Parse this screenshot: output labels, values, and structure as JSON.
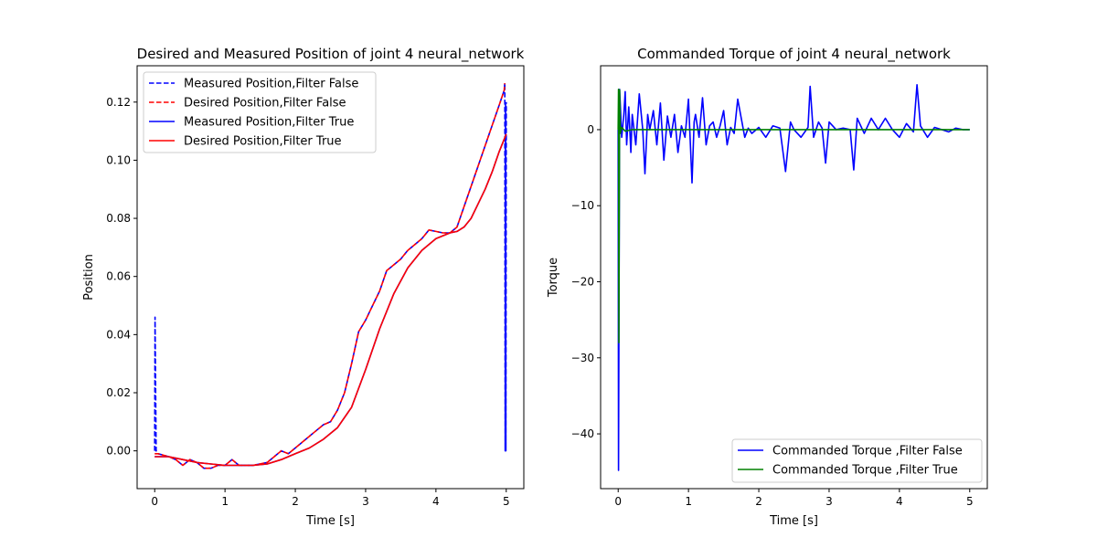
{
  "chart_data": [
    {
      "type": "line",
      "title": "Desired and Measured Position of joint 4 neural_network",
      "xlabel": "Time [s]",
      "ylabel": "Position",
      "xlim": [
        -0.25,
        5.25
      ],
      "ylim": [
        -0.013,
        0.1325
      ],
      "xticks": [
        0,
        1,
        2,
        3,
        4,
        5
      ],
      "xtick_labels": [
        "0",
        "1",
        "2",
        "3",
        "4",
        "5"
      ],
      "yticks": [
        0.0,
        0.02,
        0.04,
        0.06,
        0.08,
        0.1,
        0.12
      ],
      "ytick_labels": [
        "0.00",
        "0.02",
        "0.04",
        "0.06",
        "0.08",
        "0.10",
        "0.12"
      ],
      "grid": false,
      "legend_position": "upper-left",
      "series": [
        {
          "name": "Measured Position,Filter False",
          "color": "#0000ff",
          "style": "dashed",
          "x": [
            0,
            0.005,
            0.01,
            0.02,
            0.05,
            0.2,
            0.3,
            0.4,
            0.5,
            0.6,
            0.7,
            0.8,
            0.9,
            1.0,
            1.1,
            1.2,
            1.4,
            1.6,
            1.7,
            1.8,
            1.9,
            2.0,
            2.2,
            2.4,
            2.5,
            2.6,
            2.7,
            2.8,
            2.9,
            3.0,
            3.1,
            3.2,
            3.3,
            3.4,
            3.5,
            3.6,
            3.7,
            3.8,
            3.9,
            4.0,
            4.1,
            4.2,
            4.3,
            4.4,
            4.5,
            4.6,
            4.7,
            4.8,
            4.9,
            4.97,
            4.98,
            4.985,
            4.99,
            4.995,
            5.0
          ],
          "y": [
            0.0,
            0.046,
            0.03,
            0.0,
            -0.001,
            -0.002,
            -0.003,
            -0.005,
            -0.003,
            -0.004,
            -0.006,
            -0.006,
            -0.005,
            -0.005,
            -0.003,
            -0.005,
            -0.005,
            -0.004,
            -0.002,
            0.0,
            -0.001,
            0.001,
            0.005,
            0.009,
            0.01,
            0.014,
            0.02,
            0.03,
            0.041,
            0.045,
            0.05,
            0.055,
            0.062,
            0.064,
            0.066,
            0.069,
            0.071,
            0.073,
            0.076,
            0.0755,
            0.075,
            0.075,
            0.077,
            0.084,
            0.091,
            0.098,
            0.105,
            0.112,
            0.119,
            0.124,
            0.1265,
            0.0,
            0.12,
            0.0,
            0.12
          ]
        },
        {
          "name": "Desired Position,Filter False",
          "color": "#ff0000",
          "style": "dashed",
          "x": [
            0,
            0.05,
            0.2,
            0.3,
            0.4,
            0.5,
            0.6,
            0.7,
            0.8,
            0.9,
            1.0,
            1.1,
            1.2,
            1.4,
            1.6,
            1.7,
            1.8,
            1.9,
            2.0,
            2.2,
            2.4,
            2.5,
            2.6,
            2.7,
            2.8,
            2.9,
            3.0,
            3.1,
            3.2,
            3.3,
            3.4,
            3.5,
            3.6,
            3.7,
            3.8,
            3.9,
            4.0,
            4.1,
            4.2,
            4.3,
            4.4,
            4.5,
            4.6,
            4.7,
            4.8,
            4.9,
            4.97,
            4.98
          ],
          "y": [
            -0.001,
            -0.001,
            -0.002,
            -0.003,
            -0.005,
            -0.003,
            -0.004,
            -0.006,
            -0.006,
            -0.005,
            -0.005,
            -0.003,
            -0.005,
            -0.005,
            -0.004,
            -0.002,
            0.0,
            -0.001,
            0.001,
            0.005,
            0.009,
            0.01,
            0.014,
            0.02,
            0.03,
            0.041,
            0.045,
            0.05,
            0.055,
            0.062,
            0.064,
            0.066,
            0.069,
            0.071,
            0.073,
            0.076,
            0.0755,
            0.075,
            0.075,
            0.077,
            0.084,
            0.091,
            0.098,
            0.105,
            0.112,
            0.119,
            0.124,
            0.1265
          ]
        },
        {
          "name": "Measured Position,Filter True",
          "color": "#0000ff",
          "style": "solid",
          "x": [
            0,
            0.2,
            0.4,
            0.6,
            0.8,
            1.0,
            1.2,
            1.4,
            1.6,
            1.8,
            2.0,
            2.2,
            2.4,
            2.6,
            2.8,
            3.0,
            3.2,
            3.4,
            3.6,
            3.8,
            4.0,
            4.2,
            4.3,
            4.4,
            4.5,
            4.6,
            4.7,
            4.8,
            4.9,
            5.0
          ],
          "y": [
            -0.002,
            -0.002,
            -0.003,
            -0.004,
            -0.0045,
            -0.005,
            -0.005,
            -0.005,
            -0.0045,
            -0.003,
            -0.001,
            0.001,
            0.004,
            0.008,
            0.015,
            0.028,
            0.042,
            0.054,
            0.063,
            0.069,
            0.073,
            0.075,
            0.0755,
            0.077,
            0.08,
            0.085,
            0.09,
            0.096,
            0.103,
            0.109
          ]
        },
        {
          "name": "Desired Position,Filter True",
          "color": "#ff0000",
          "style": "solid",
          "x": [
            0,
            0.2,
            0.4,
            0.6,
            0.8,
            1.0,
            1.2,
            1.4,
            1.6,
            1.8,
            2.0,
            2.2,
            2.4,
            2.6,
            2.8,
            3.0,
            3.2,
            3.4,
            3.6,
            3.8,
            4.0,
            4.2,
            4.3,
            4.4,
            4.5,
            4.6,
            4.7,
            4.8,
            4.9,
            5.0
          ],
          "y": [
            -0.002,
            -0.002,
            -0.003,
            -0.004,
            -0.0045,
            -0.005,
            -0.005,
            -0.005,
            -0.0045,
            -0.003,
            -0.001,
            0.001,
            0.004,
            0.008,
            0.015,
            0.028,
            0.042,
            0.054,
            0.063,
            0.069,
            0.073,
            0.075,
            0.0755,
            0.077,
            0.08,
            0.085,
            0.09,
            0.096,
            0.103,
            0.109
          ]
        }
      ]
    },
    {
      "type": "line",
      "title": "Commanded Torque of joint 4 neural_network",
      "xlabel": "Time [s]",
      "ylabel": "Torque",
      "xlim": [
        -0.25,
        5.25
      ],
      "ylim": [
        -47.2,
        8.4
      ],
      "xticks": [
        0,
        1,
        2,
        3,
        4,
        5
      ],
      "xtick_labels": [
        "0",
        "1",
        "2",
        "3",
        "4",
        "5"
      ],
      "yticks": [
        -40,
        -30,
        -20,
        -10,
        0
      ],
      "ytick_labels": [
        "−40",
        "−30",
        "−20",
        "−10",
        "0"
      ],
      "grid": false,
      "legend_position": "lower-right",
      "series": [
        {
          "name": "Commanded Torque ,Filter False",
          "color": "#0000ff",
          "style": "solid",
          "x": [
            0,
            0.005,
            0.01,
            0.02,
            0.05,
            0.08,
            0.1,
            0.12,
            0.15,
            0.18,
            0.2,
            0.25,
            0.3,
            0.35,
            0.38,
            0.42,
            0.45,
            0.5,
            0.55,
            0.6,
            0.65,
            0.7,
            0.75,
            0.8,
            0.85,
            0.9,
            0.95,
            1.0,
            1.05,
            1.08,
            1.1,
            1.15,
            1.2,
            1.25,
            1.3,
            1.35,
            1.4,
            1.45,
            1.5,
            1.55,
            1.6,
            1.65,
            1.7,
            1.8,
            1.85,
            1.9,
            2.0,
            2.1,
            2.2,
            2.3,
            2.38,
            2.45,
            2.5,
            2.6,
            2.7,
            2.73,
            2.78,
            2.85,
            2.9,
            2.95,
            3.0,
            3.1,
            3.2,
            3.3,
            3.35,
            3.4,
            3.5,
            3.6,
            3.7,
            3.8,
            3.9,
            4.0,
            4.1,
            4.2,
            4.25,
            4.3,
            4.4,
            4.5,
            4.6,
            4.7,
            4.8,
            4.9,
            5.0
          ],
          "y": [
            0,
            -44.8,
            -28,
            5.3,
            -1,
            2,
            5,
            -2,
            3,
            -3,
            2,
            -2,
            4.7,
            0,
            -5.8,
            2,
            0,
            2.5,
            -2,
            3.5,
            -4,
            1.8,
            -1,
            2,
            -3,
            0.5,
            -1,
            4,
            -7,
            1,
            2,
            -1,
            4.2,
            -2,
            0.5,
            1,
            -1,
            0.5,
            2.5,
            -2,
            0.3,
            -0.5,
            4,
            -1,
            0.2,
            -0.5,
            0.3,
            -1,
            0.5,
            0.2,
            -5.5,
            1,
            0,
            -1,
            0.3,
            5.7,
            -1,
            1,
            0.2,
            -4.4,
            1,
            0,
            0.2,
            0,
            -5.3,
            1.5,
            -0.5,
            1.5,
            0,
            1.5,
            0,
            -1,
            0.8,
            -0.3,
            5.9,
            0.5,
            -1,
            0.3,
            0,
            -0.3,
            0.2,
            0,
            0
          ]
        },
        {
          "name": "Commanded Torque ,Filter True",
          "color": "#008000",
          "style": "solid",
          "x": [
            0,
            0.005,
            0.01,
            0.02,
            0.03,
            0.05,
            0.1,
            0.2,
            0.4,
            0.6,
            1.0,
            2.0,
            3.0,
            4.0,
            5.0
          ],
          "y": [
            0,
            5.3,
            -28,
            5.2,
            -0.5,
            0.3,
            -0.2,
            0,
            0,
            0,
            0,
            0,
            0,
            0,
            0
          ]
        }
      ]
    }
  ]
}
